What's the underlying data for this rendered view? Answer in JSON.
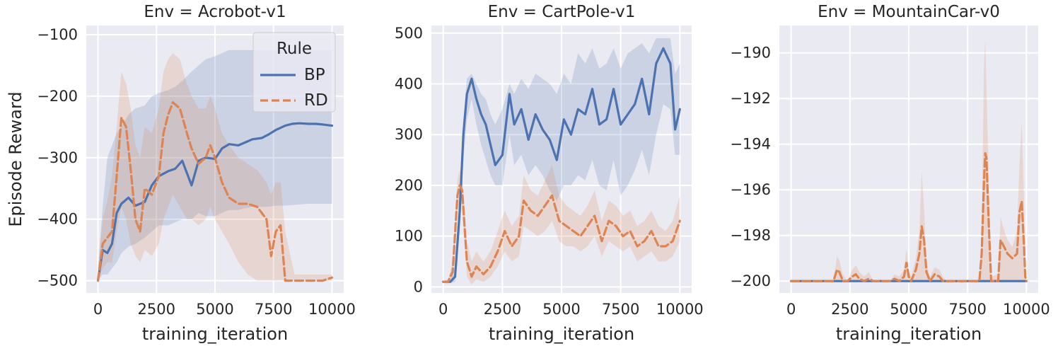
{
  "chart_data": [
    {
      "type": "line",
      "title": "Env = Acrobot-v1",
      "xlabel": "training_iteration",
      "ylabel": "Episode Reward",
      "xlim": [
        -500,
        10500
      ],
      "ylim": [
        -520,
        -85
      ],
      "xticks": [
        0,
        2500,
        5000,
        7500,
        10000
      ],
      "xtick_labels": [
        "0",
        "2500",
        "5000",
        "7500",
        "10000"
      ],
      "yticks": [
        -500,
        -400,
        -300,
        -200,
        -100
      ],
      "ytick_labels": [
        "−500",
        "−400",
        "−300",
        "−200",
        "−100"
      ],
      "grid": true,
      "legend": {
        "title": "Rule",
        "position": "top-right"
      },
      "series": [
        {
          "name": "BP",
          "color": "#4C72B0",
          "style": "solid",
          "x": [
            0,
            200,
            400,
            600,
            800,
            1000,
            1300,
            1600,
            2000,
            2300,
            2600,
            3000,
            3300,
            3600,
            4000,
            4300,
            4600,
            5000,
            5300,
            5600,
            6000,
            6300,
            6600,
            7000,
            7300,
            7600,
            8000,
            8300,
            8600,
            9000,
            9300,
            9600,
            10000
          ],
          "y": [
            -500,
            -450,
            -455,
            -440,
            -390,
            -375,
            -365,
            -378,
            -372,
            -345,
            -330,
            -322,
            -318,
            -305,
            -345,
            -305,
            -300,
            -302,
            -285,
            -278,
            -280,
            -275,
            -270,
            -268,
            -262,
            -255,
            -248,
            -245,
            -244,
            -245,
            -245,
            -246,
            -248
          ],
          "upper": [
            -480,
            -380,
            -300,
            -280,
            -260,
            -250,
            -230,
            -220,
            -215,
            -200,
            -195,
            -190,
            -185,
            -175,
            -160,
            -150,
            -140,
            -135,
            -130,
            -125,
            -125,
            -125,
            -125,
            -125,
            -125,
            -125,
            -125,
            -125,
            -125,
            -125,
            -125,
            -125,
            -125
          ],
          "lower": [
            -500,
            -490,
            -490,
            -480,
            -470,
            -455,
            -445,
            -440,
            -430,
            -420,
            -410,
            -410,
            -405,
            -400,
            -400,
            -390,
            -395,
            -395,
            -390,
            -385,
            -385,
            -382,
            -380,
            -380,
            -380,
            -378,
            -378,
            -377,
            -376,
            -375,
            -375,
            -375,
            -375
          ]
        },
        {
          "name": "RD",
          "color": "#DD8452",
          "style": "dashed",
          "x": [
            0,
            200,
            400,
            600,
            800,
            1000,
            1200,
            1400,
            1600,
            1800,
            2000,
            2300,
            2600,
            2800,
            3000,
            3200,
            3500,
            3800,
            4000,
            4300,
            4600,
            4800,
            5000,
            5300,
            5600,
            6000,
            6400,
            6800,
            7200,
            7400,
            7600,
            7800,
            8000,
            8400,
            9000,
            9600,
            10000
          ],
          "y": [
            -500,
            -440,
            -430,
            -420,
            -330,
            -235,
            -250,
            -320,
            -400,
            -420,
            -350,
            -360,
            -330,
            -260,
            -230,
            -210,
            -220,
            -260,
            -285,
            -310,
            -300,
            -280,
            -300,
            -340,
            -365,
            -375,
            -375,
            -380,
            -400,
            -460,
            -420,
            -410,
            -500,
            -500,
            -500,
            -500,
            -495
          ],
          "upper": [
            -480,
            -400,
            -370,
            -330,
            -250,
            -160,
            -180,
            -220,
            -280,
            -300,
            -250,
            -260,
            -220,
            -160,
            -140,
            -130,
            -140,
            -180,
            -200,
            -220,
            -220,
            -200,
            -220,
            -260,
            -280,
            -300,
            -310,
            -320,
            -340,
            -360,
            -340,
            -340,
            -420,
            -490,
            -490,
            -490,
            -490
          ],
          "lower": [
            -500,
            -480,
            -470,
            -470,
            -420,
            -380,
            -400,
            -440,
            -460,
            -470,
            -450,
            -460,
            -440,
            -400,
            -380,
            -360,
            -380,
            -400,
            -400,
            -410,
            -400,
            -380,
            -400,
            -420,
            -440,
            -470,
            -490,
            -500,
            -500,
            -500,
            -500,
            -500,
            -500,
            -500,
            -500,
            -500,
            -500
          ]
        }
      ]
    },
    {
      "type": "line",
      "title": "Env = CartPole-v1",
      "xlabel": "training_iteration",
      "ylabel": "",
      "xlim": [
        -500,
        10500
      ],
      "ylim": [
        -12,
        515
      ],
      "xticks": [
        0,
        2500,
        5000,
        7500,
        10000
      ],
      "xtick_labels": [
        "0",
        "2500",
        "5000",
        "7500",
        "10000"
      ],
      "yticks": [
        0,
        100,
        200,
        300,
        400,
        500
      ],
      "ytick_labels": [
        "0",
        "100",
        "200",
        "300",
        "400",
        "500"
      ],
      "grid": true,
      "series": [
        {
          "name": "BP",
          "color": "#4C72B0",
          "style": "solid",
          "x": [
            0,
            300,
            500,
            700,
            850,
            1000,
            1200,
            1400,
            1600,
            1800,
            2000,
            2200,
            2500,
            2800,
            3000,
            3300,
            3600,
            3900,
            4200,
            4500,
            4800,
            5100,
            5400,
            5700,
            6000,
            6300,
            6600,
            6900,
            7200,
            7500,
            7800,
            8100,
            8400,
            8700,
            9000,
            9300,
            9600,
            9800,
            10000
          ],
          "y": [
            10,
            10,
            20,
            150,
            300,
            380,
            410,
            370,
            340,
            320,
            280,
            240,
            260,
            380,
            320,
            350,
            290,
            340,
            310,
            290,
            250,
            330,
            300,
            350,
            340,
            390,
            320,
            330,
            390,
            320,
            340,
            360,
            410,
            340,
            440,
            470,
            440,
            310,
            350
          ],
          "upper": [
            10,
            12,
            40,
            190,
            330,
            410,
            420,
            400,
            380,
            370,
            340,
            320,
            350,
            400,
            380,
            410,
            390,
            420,
            410,
            400,
            380,
            420,
            400,
            460,
            440,
            470,
            430,
            440,
            470,
            430,
            460,
            470,
            480,
            460,
            490,
            490,
            490,
            420,
            440
          ],
          "lower": [
            10,
            8,
            10,
            110,
            250,
            330,
            370,
            320,
            280,
            250,
            220,
            200,
            200,
            300,
            240,
            260,
            220,
            240,
            220,
            190,
            170,
            200,
            200,
            220,
            210,
            250,
            200,
            190,
            250,
            180,
            200,
            230,
            270,
            220,
            300,
            360,
            350,
            260,
            260
          ]
        },
        {
          "name": "RD",
          "color": "#DD8452",
          "style": "dashed",
          "x": [
            0,
            200,
            400,
            600,
            700,
            800,
            900,
            1000,
            1200,
            1400,
            1700,
            2000,
            2300,
            2600,
            2900,
            3200,
            3400,
            3700,
            4000,
            4300,
            4600,
            4900,
            5200,
            5500,
            5800,
            6100,
            6400,
            6700,
            7000,
            7300,
            7600,
            7900,
            8200,
            8500,
            8800,
            9100,
            9400,
            9700,
            10000
          ],
          "y": [
            10,
            10,
            30,
            180,
            200,
            190,
            120,
            50,
            20,
            40,
            25,
            40,
            70,
            110,
            80,
            100,
            170,
            150,
            140,
            160,
            180,
            130,
            120,
            110,
            100,
            120,
            140,
            90,
            130,
            120,
            100,
            110,
            80,
            90,
            110,
            80,
            80,
            90,
            130
          ],
          "upper": [
            12,
            14,
            50,
            210,
            230,
            220,
            160,
            90,
            50,
            70,
            50,
            70,
            110,
            150,
            120,
            140,
            220,
            190,
            180,
            210,
            240,
            180,
            160,
            150,
            140,
            160,
            190,
            130,
            170,
            160,
            140,
            150,
            120,
            130,
            150,
            120,
            110,
            130,
            180
          ],
          "lower": [
            8,
            6,
            15,
            150,
            170,
            160,
            90,
            20,
            5,
            15,
            10,
            20,
            40,
            70,
            50,
            60,
            120,
            110,
            100,
            110,
            130,
            90,
            80,
            80,
            70,
            80,
            100,
            60,
            90,
            80,
            70,
            80,
            50,
            60,
            70,
            50,
            50,
            60,
            90
          ]
        }
      ]
    },
    {
      "type": "line",
      "title": "Env = MountainCar-v0",
      "xlabel": "training_iteration",
      "ylabel": "",
      "xlim": [
        -500,
        10500
      ],
      "ylim": [
        -200.52,
        -188.8
      ],
      "xticks": [
        0,
        2500,
        5000,
        7500,
        10000
      ],
      "xtick_labels": [
        "0",
        "2500",
        "5000",
        "7500",
        "10000"
      ],
      "yticks": [
        -200,
        -198,
        -196,
        -194,
        -192,
        -190
      ],
      "ytick_labels": [
        "−200",
        "−198",
        "−196",
        "−194",
        "−192",
        "−190"
      ],
      "grid": true,
      "series": [
        {
          "name": "BP",
          "color": "#4C72B0",
          "style": "solid",
          "x": [
            0,
            10000
          ],
          "y": [
            -200,
            -200
          ],
          "upper": [
            -200,
            -200
          ],
          "lower": [
            -200,
            -200
          ]
        },
        {
          "name": "RD",
          "color": "#DD8452",
          "style": "dashed",
          "x": [
            0,
            1800,
            1950,
            2050,
            2200,
            2400,
            2600,
            2750,
            2900,
            3100,
            3300,
            3500,
            4200,
            4400,
            4600,
            4800,
            4900,
            5000,
            5100,
            5300,
            5450,
            5550,
            5650,
            5750,
            5900,
            6100,
            6300,
            6450,
            6600,
            8000,
            8100,
            8200,
            8250,
            8300,
            8400,
            8500,
            8800,
            8900,
            9000,
            9200,
            9400,
            9600,
            9700,
            9800,
            9900,
            9950,
            10000
          ],
          "y": [
            -200,
            -200,
            -199.5,
            -199.6,
            -200,
            -200,
            -199.8,
            -199.7,
            -199.9,
            -200,
            -199.9,
            -200,
            -200,
            -199.9,
            -200,
            -199.8,
            -199.2,
            -199.8,
            -200,
            -199.5,
            -198.8,
            -197.6,
            -198.2,
            -199.6,
            -200,
            -199.7,
            -199.8,
            -200,
            -200,
            -200,
            -198.8,
            -195.5,
            -194.4,
            -194.6,
            -197.5,
            -200,
            -200,
            -198.2,
            -198.4,
            -198.8,
            -199,
            -198.8,
            -197.0,
            -196.5,
            -198.5,
            -199.8,
            -200
          ],
          "upper": [
            -200,
            -200,
            -198.9,
            -199.1,
            -199.7,
            -200,
            -199.5,
            -199.3,
            -199.6,
            -199.8,
            -199.6,
            -200,
            -200,
            -199.7,
            -199.8,
            -199.5,
            -198.6,
            -199.5,
            -199.8,
            -199.0,
            -197.8,
            -195.2,
            -196.8,
            -199.2,
            -199.8,
            -199.4,
            -199.5,
            -199.8,
            -200,
            -200,
            -197.5,
            -190.5,
            -189.4,
            -191.5,
            -195.5,
            -199.8,
            -199.7,
            -197.2,
            -197.6,
            -198.2,
            -198.5,
            -197.8,
            -195.0,
            -193.0,
            -196.5,
            -199.4,
            -200
          ],
          "lower": [
            -200,
            -200,
            -200,
            -200,
            -200,
            -200,
            -200,
            -200,
            -200,
            -200,
            -200,
            -200,
            -200,
            -200,
            -200,
            -200,
            -200,
            -200,
            -200,
            -200,
            -200,
            -200,
            -200,
            -200,
            -200,
            -200,
            -200,
            -200,
            -200,
            -200,
            -200,
            -200,
            -200,
            -200,
            -200,
            -200,
            -200,
            -200,
            -200,
            -200,
            -200,
            -200,
            -200,
            -200,
            -200,
            -200,
            -200
          ]
        }
      ]
    }
  ]
}
